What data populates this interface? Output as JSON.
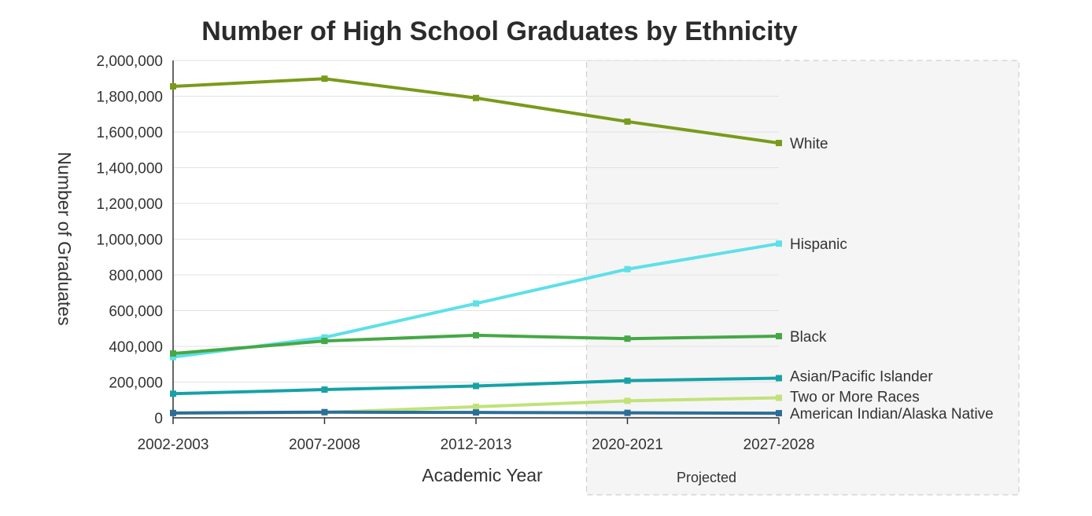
{
  "chart_data": {
    "type": "line",
    "title": "Number of High School Graduates by Ethnicity",
    "xlabel": "Academic Year",
    "ylabel": "Number of Graduates",
    "categories": [
      "2002-2003",
      "2007-2008",
      "2012-2013",
      "2020-2021",
      "2027-2028"
    ],
    "ylim": [
      0,
      2000000
    ],
    "yticks": [
      0,
      200000,
      400000,
      600000,
      800000,
      1000000,
      1200000,
      1400000,
      1600000,
      1800000,
      2000000
    ],
    "ytick_labels": [
      "0",
      "200,000",
      "400,000",
      "600,000",
      "800,000",
      "1,000,000",
      "1,200,000",
      "1,400,000",
      "1,600,000",
      "1,800,000",
      "2,000,000"
    ],
    "grid": true,
    "legend": "direct labels at right end of lines",
    "projected_region": {
      "label": "Projected",
      "from_category": "2020-2021"
    },
    "series": [
      {
        "name": "White",
        "color": "#7a9a1a",
        "values": [
          1855000,
          1898000,
          1790000,
          1658000,
          1538000
        ]
      },
      {
        "name": "Hispanic",
        "color": "#5ee0e8",
        "values": [
          340000,
          450000,
          640000,
          832000,
          975000
        ]
      },
      {
        "name": "Black",
        "color": "#45a845",
        "values": [
          360000,
          430000,
          462000,
          443000,
          457000
        ]
      },
      {
        "name": "Asian/Pacific Islander",
        "color": "#17a2a6",
        "values": [
          135000,
          158000,
          178000,
          208000,
          222000
        ]
      },
      {
        "name": "Two or More Races",
        "color": "#c1e27a",
        "values": [
          26000,
          30000,
          62000,
          95000,
          112000
        ]
      },
      {
        "name": "American Indian/Alaska Native",
        "color": "#2c6e99",
        "values": [
          27000,
          32000,
          30000,
          28000,
          26000
        ]
      }
    ]
  }
}
